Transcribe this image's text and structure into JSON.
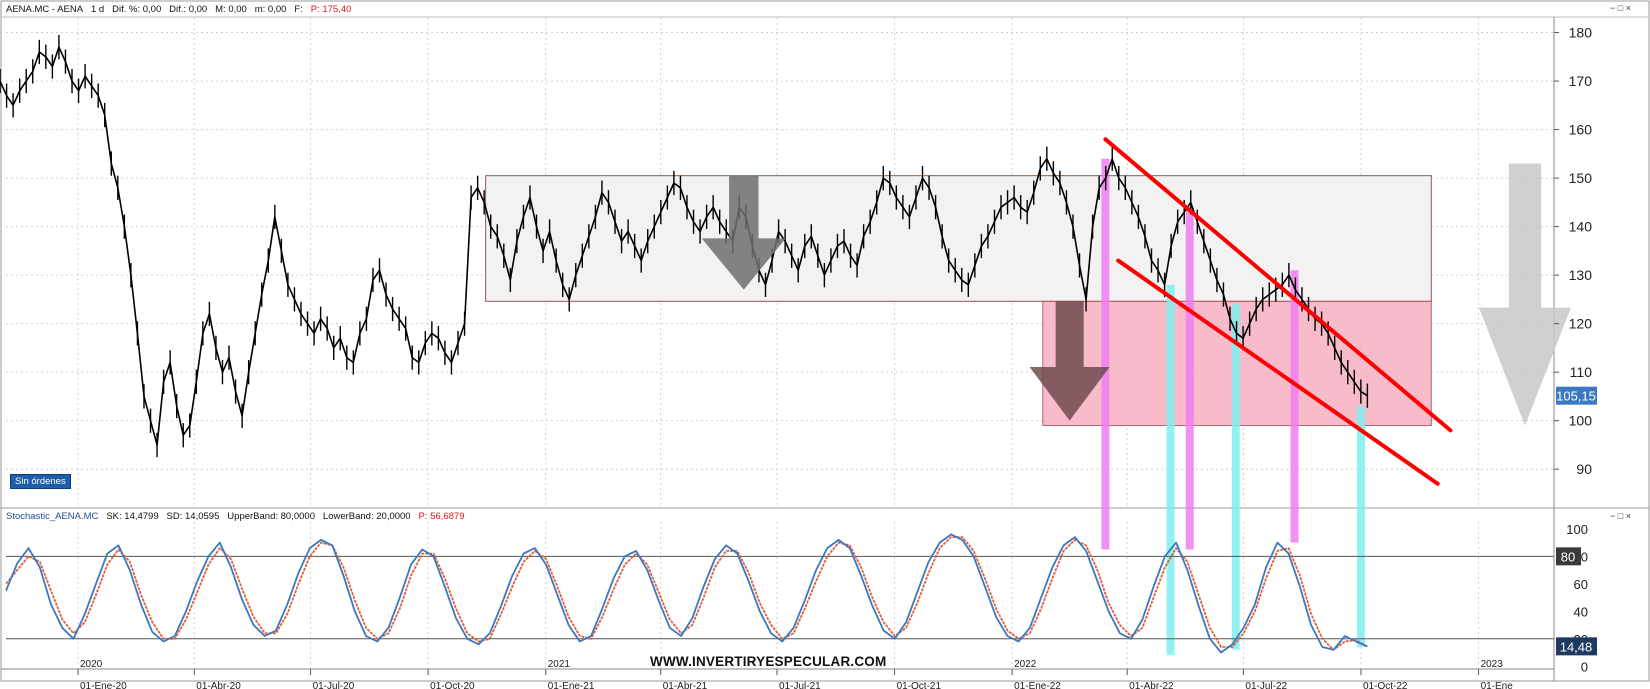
{
  "price_header": {
    "symbol": "AENA.MC - AENA",
    "period": "1 d",
    "dif_pct": "Dif. %: 0,00",
    "dif": "Dif.: 0,00",
    "max": "M: 0,00",
    "min": "m: 0,00",
    "last": "F:",
    "pointer": "P: 175,40"
  },
  "stoch_header": {
    "name": "Stochastic_AENA.MC",
    "sk": "SK: 14,4799",
    "sd": "SD: 14,0595",
    "upper": "UpperBand: 80,0000",
    "lower": "LowerBand: 20,0000",
    "pointer": "P: 56,6879"
  },
  "badge": "Sin órdenes",
  "watermark": "WWW.INVERTIRYESPECULAR.COM",
  "window_controls": [
    "−",
    "□",
    "×"
  ],
  "colors": {
    "price_line": "#000000",
    "grid": "#d0d0d0",
    "range_box_fill": "#f2f2f2",
    "range_box_border": "#a05050",
    "pink_zone_fill": "#f8b4c4",
    "pink_zone_border": "#b05060",
    "channel": "#ff0000",
    "arrow_gray": "#6e6e6e",
    "arrow_dark": "#6e4a4e",
    "arrow_light": "#c8c8c8",
    "magenta_marker": "#f07ef0",
    "cyan_marker": "#7ff0f0",
    "stoch_k": "#3a78c0",
    "stoch_d": "#e0603c",
    "last_price_label": "#3a78c0"
  },
  "chart_data": [
    {
      "type": "line",
      "title": "AENA.MC - AENA",
      "ylim": [
        82,
        183
      ],
      "y_ticks": [
        90,
        100,
        110,
        120,
        130,
        140,
        150,
        160,
        170,
        180
      ],
      "x_year_labels": [
        "2020",
        "2021",
        "2022",
        "2023"
      ],
      "x_month_labels": [
        "01-Ene-20",
        "01-Abr-20",
        "01-Jul-20",
        "01-Oct-20",
        "01-Ene-21",
        "01-Abr-21",
        "01-Jul-21",
        "01-Oct-21",
        "01-Ene-22",
        "01-Abr-22",
        "01-Jul-22",
        "01-Oct-22",
        "01-Ene"
      ],
      "last_value_label": "105,15",
      "grid": true,
      "series": [
        {
          "values": [
            170,
            167,
            165,
            168,
            170,
            172,
            176,
            175,
            173,
            177,
            174,
            170,
            168,
            171,
            169,
            167,
            163,
            153,
            148,
            140,
            130,
            118,
            105,
            100,
            95,
            108,
            112,
            103,
            97,
            99,
            108,
            118,
            122,
            115,
            110,
            113,
            106,
            101,
            110,
            118,
            126,
            133,
            142,
            135,
            128,
            125,
            122,
            120,
            118,
            121,
            119,
            115,
            117,
            113,
            112,
            118,
            121,
            129,
            131,
            126,
            123,
            121,
            119,
            113,
            112,
            116,
            118,
            117,
            114,
            112,
            116,
            120,
            146,
            148,
            145,
            140,
            138,
            134,
            129,
            137,
            142,
            146,
            140,
            135,
            139,
            133,
            128,
            125,
            130,
            134,
            138,
            142,
            147,
            145,
            141,
            137,
            139,
            136,
            133,
            137,
            140,
            143,
            146,
            149,
            148,
            144,
            141,
            139,
            142,
            144,
            141,
            139,
            137,
            144,
            142,
            136,
            131,
            128,
            133,
            139,
            137,
            134,
            131,
            136,
            138,
            134,
            130,
            133,
            136,
            137,
            134,
            132,
            138,
            141,
            145,
            150,
            149,
            146,
            144,
            142,
            146,
            150,
            148,
            144,
            138,
            133,
            131,
            129,
            128,
            132,
            136,
            138,
            141,
            144,
            145,
            146,
            144,
            143,
            147,
            152,
            154,
            151,
            149,
            145,
            140,
            132,
            125,
            140,
            148,
            150,
            154,
            150,
            148,
            145,
            142,
            138,
            133,
            131,
            128,
            136,
            141,
            143,
            145,
            141,
            137,
            133,
            129,
            126,
            121,
            118,
            117,
            120,
            123,
            125,
            126,
            127,
            128,
            130,
            127,
            125,
            123,
            121,
            120,
            118,
            115,
            112,
            110,
            108,
            106,
            105.15
          ],
          "x_range": [
            "2019-11-01",
            "2022-10-06"
          ]
        }
      ],
      "annotations": {
        "range_box": {
          "y_top": 150.5,
          "y_bottom": 124.6,
          "x_start": "2020-11-15",
          "x_end": "2022-11-25"
        },
        "support_zone": {
          "y_top": 124.6,
          "y_bottom": 99,
          "x_start": "2022-01-25",
          "x_end": "2022-11-25"
        },
        "channel_upper": {
          "from": [
            "2022-03-15",
            158
          ],
          "to": [
            "2022-12-10",
            98
          ]
        },
        "channel_lower": {
          "from": [
            "2022-03-25",
            133
          ],
          "to": [
            "2022-11-30",
            87
          ]
        }
      }
    },
    {
      "type": "line",
      "title": "Stochastic_AENA.MC",
      "ylim": [
        -2,
        105
      ],
      "y_ticks": [
        0,
        20,
        40,
        60,
        80,
        100
      ],
      "bands": [
        20,
        80
      ],
      "last_k_label": "14,48",
      "upper_label": "80",
      "series": [
        {
          "name": "SK",
          "values": [
            55,
            75,
            86,
            72,
            45,
            28,
            20,
            38,
            60,
            82,
            88,
            70,
            45,
            25,
            18,
            22,
            40,
            62,
            80,
            90,
            72,
            48,
            30,
            22,
            26,
            45,
            68,
            86,
            92,
            88,
            66,
            40,
            22,
            18,
            28,
            50,
            74,
            85,
            80,
            58,
            35,
            20,
            16,
            24,
            44,
            66,
            82,
            86,
            74,
            52,
            30,
            18,
            22,
            42,
            64,
            80,
            84,
            70,
            48,
            28,
            22,
            35,
            58,
            78,
            88,
            82,
            62,
            40,
            24,
            18,
            28,
            48,
            70,
            86,
            92,
            86,
            66,
            44,
            26,
            20,
            32,
            54,
            76,
            90,
            96,
            92,
            80,
            58,
            36,
            22,
            18,
            28,
            50,
            72,
            88,
            94,
            84,
            62,
            40,
            24,
            20,
            34,
            58,
            80,
            90,
            70,
            44,
            20,
            10,
            16,
            28,
            45,
            72,
            90,
            82,
            58,
            30,
            14,
            12,
            22,
            18,
            14.48
          ]
        },
        {
          "name": "SD",
          "values": [
            60,
            70,
            80,
            76,
            55,
            34,
            24,
            32,
            52,
            74,
            85,
            76,
            52,
            32,
            20,
            20,
            34,
            54,
            74,
            86,
            78,
            56,
            36,
            24,
            24,
            38,
            60,
            80,
            90,
            88,
            72,
            48,
            28,
            20,
            24,
            42,
            66,
            82,
            82,
            64,
            42,
            24,
            18,
            20,
            38,
            58,
            76,
            84,
            78,
            58,
            36,
            22,
            20,
            36,
            56,
            74,
            82,
            74,
            54,
            34,
            24,
            30,
            50,
            72,
            84,
            84,
            68,
            46,
            30,
            20,
            24,
            42,
            62,
            80,
            90,
            88,
            72,
            50,
            32,
            22,
            28,
            46,
            68,
            86,
            94,
            94,
            84,
            64,
            42,
            26,
            20,
            24,
            42,
            64,
            84,
            92,
            88,
            70,
            46,
            30,
            22,
            28,
            50,
            72,
            86,
            76,
            52,
            28,
            14,
            14,
            24,
            40,
            64,
            84,
            86,
            66,
            38,
            20,
            12,
            18,
            19,
            14.06
          ]
        }
      ]
    }
  ]
}
